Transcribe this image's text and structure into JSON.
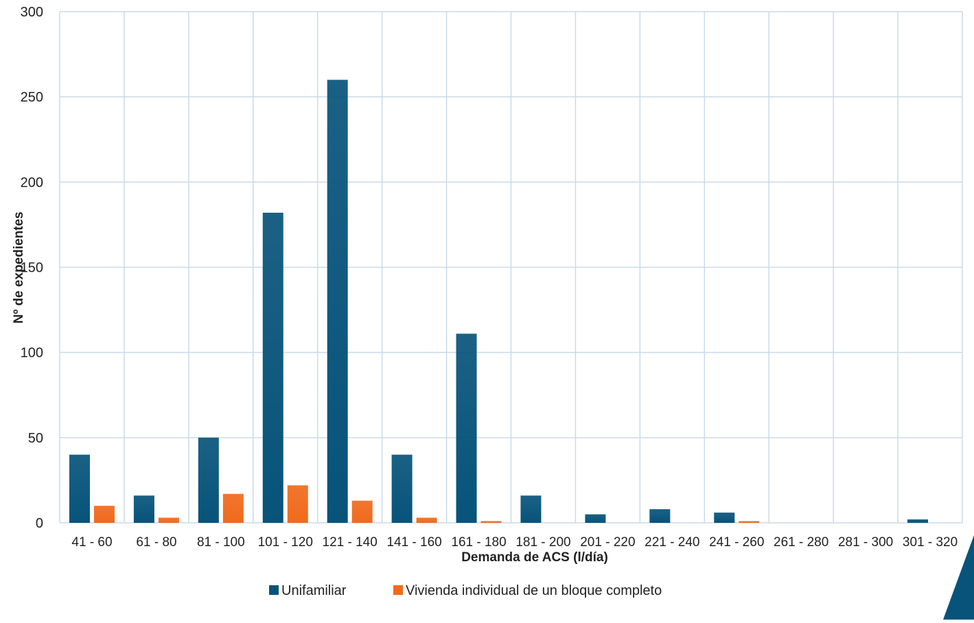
{
  "chart_data": {
    "type": "bar",
    "title": "",
    "xlabel": "Demanda de ACS (l/día)",
    "ylabel": "Nº de expedientes",
    "ylim": [
      0,
      300
    ],
    "yticks": [
      0,
      50,
      100,
      150,
      200,
      250,
      300
    ],
    "grid": true,
    "legend_position": "bottom",
    "categories": [
      "41 - 60",
      "61 - 80",
      "81 - 100",
      "101 - 120",
      "121 - 140",
      "141 - 160",
      "161 - 180",
      "181 - 200",
      "201 - 220",
      "221 - 240",
      "241 - 260",
      "261 - 280",
      "281 - 300",
      "301 - 320"
    ],
    "series": [
      {
        "name": "Unifamiliar",
        "color": "#07537a",
        "values": [
          40,
          16,
          50,
          182,
          260,
          40,
          111,
          16,
          5,
          8,
          6,
          0,
          0,
          2
        ]
      },
      {
        "name": "Vivienda individual de un bloque completo",
        "color": "#f06a1c",
        "values": [
          10,
          3,
          17,
          22,
          13,
          3,
          1,
          0,
          0,
          0,
          1,
          0,
          0,
          0
        ]
      }
    ]
  },
  "decoration": {
    "corner_color": "#07537a"
  }
}
